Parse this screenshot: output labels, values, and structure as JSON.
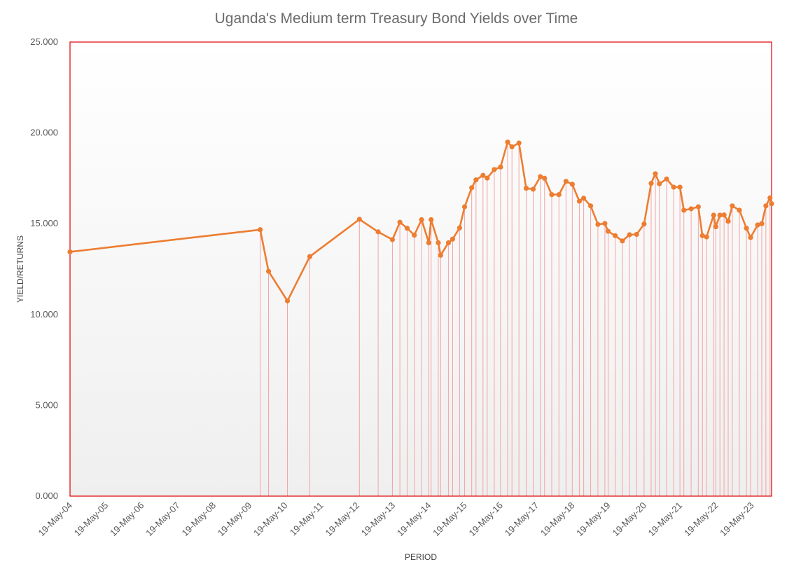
{
  "chart_data": {
    "type": "line",
    "title": "Uganda's Medium term Treasury Bond Yields over Time",
    "xlabel": "PERIOD",
    "ylabel": "YIELD/RETURNS",
    "ylim": [
      0,
      25
    ],
    "y_ticks": [
      "0.000",
      "5.000",
      "10.000",
      "15.000",
      "20.000",
      "25.000"
    ],
    "x_ticks": [
      "19-May-04",
      "19-May-05",
      "19-May-06",
      "19-May-07",
      "19-May-08",
      "19-May-09",
      "19-May-10",
      "19-May-11",
      "19-May-12",
      "19-May-13",
      "19-May-14",
      "19-May-15",
      "19-May-16",
      "19-May-17",
      "19-May-18",
      "19-May-19",
      "19-May-20",
      "19-May-21",
      "19-May-22",
      "19-May-23"
    ],
    "xlim": [
      "2004-05-19",
      "2023-12-08"
    ],
    "grid": false,
    "drop_lines": true,
    "colors": {
      "line": "#ed7d31",
      "marker": "#ed7d31",
      "drop_line": "#f4a3a3",
      "plot_border": "#e00000",
      "plot_fill_top": "#ffffff",
      "plot_fill_bottom": "#efefef"
    },
    "series": [
      {
        "points": [
          [
            "2004-05-19",
            13.45
          ],
          [
            "2009-09-06",
            14.67
          ],
          [
            "2009-11-30",
            12.38
          ],
          [
            "2010-06-10",
            10.75
          ],
          [
            "2011-01-24",
            13.19
          ],
          [
            "2012-06-12",
            15.24
          ],
          [
            "2012-12-20",
            14.55
          ],
          [
            "2013-05-14",
            14.12
          ],
          [
            "2013-07-29",
            15.08
          ],
          [
            "2013-10-11",
            14.75
          ],
          [
            "2013-12-23",
            14.37
          ],
          [
            "2014-03-07",
            15.22
          ],
          [
            "2014-05-19",
            13.95
          ],
          [
            "2014-06-12",
            15.22
          ],
          [
            "2014-08-24",
            13.95
          ],
          [
            "2014-09-17",
            13.26
          ],
          [
            "2014-12-05",
            13.95
          ],
          [
            "2015-01-17",
            14.15
          ],
          [
            "2015-03-29",
            14.77
          ],
          [
            "2015-05-19",
            15.93
          ],
          [
            "2015-07-30",
            16.98
          ],
          [
            "2015-09-12",
            17.41
          ],
          [
            "2015-11-22",
            17.66
          ],
          [
            "2016-01-04",
            17.51
          ],
          [
            "2016-03-16",
            17.98
          ],
          [
            "2016-05-19",
            18.12
          ],
          [
            "2016-07-30",
            19.49
          ],
          [
            "2016-09-12",
            19.23
          ],
          [
            "2016-11-22",
            19.44
          ],
          [
            "2017-02-04",
            16.95
          ],
          [
            "2017-04-16",
            16.9
          ],
          [
            "2017-06-28",
            17.59
          ],
          [
            "2017-08-10",
            17.5
          ],
          [
            "2017-10-22",
            16.6
          ],
          [
            "2018-01-03",
            16.6
          ],
          [
            "2018-03-16",
            17.33
          ],
          [
            "2018-05-19",
            17.17
          ],
          [
            "2018-07-30",
            16.24
          ],
          [
            "2018-09-12",
            16.4
          ],
          [
            "2018-11-22",
            15.98
          ],
          [
            "2019-02-04",
            14.96
          ],
          [
            "2019-04-16",
            15.01
          ],
          [
            "2019-05-19",
            14.58
          ],
          [
            "2019-07-30",
            14.34
          ],
          [
            "2019-10-11",
            14.05
          ],
          [
            "2019-12-23",
            14.39
          ],
          [
            "2020-03-04",
            14.41
          ],
          [
            "2020-05-19",
            14.98
          ],
          [
            "2020-07-30",
            17.22
          ],
          [
            "2020-09-11",
            17.75
          ],
          [
            "2020-10-22",
            17.2
          ],
          [
            "2021-01-03",
            17.46
          ],
          [
            "2021-03-16",
            17.01
          ],
          [
            "2021-05-19",
            17.01
          ],
          [
            "2021-06-28",
            15.74
          ],
          [
            "2021-09-10",
            15.82
          ],
          [
            "2021-11-22",
            15.93
          ],
          [
            "2022-01-03",
            14.34
          ],
          [
            "2022-02-14",
            14.27
          ],
          [
            "2022-04-27",
            15.47
          ],
          [
            "2022-05-19",
            14.83
          ],
          [
            "2022-06-30",
            15.47
          ],
          [
            "2022-08-11",
            15.48
          ],
          [
            "2022-09-22",
            15.13
          ],
          [
            "2022-11-03",
            15.98
          ],
          [
            "2023-01-14",
            15.74
          ],
          [
            "2023-03-27",
            14.75
          ],
          [
            "2023-05-08",
            14.24
          ],
          [
            "2023-07-19",
            14.93
          ],
          [
            "2023-08-30",
            15.0
          ],
          [
            "2023-10-11",
            15.98
          ],
          [
            "2023-11-22",
            16.42
          ],
          [
            "2023-12-08",
            16.1
          ]
        ]
      }
    ]
  }
}
